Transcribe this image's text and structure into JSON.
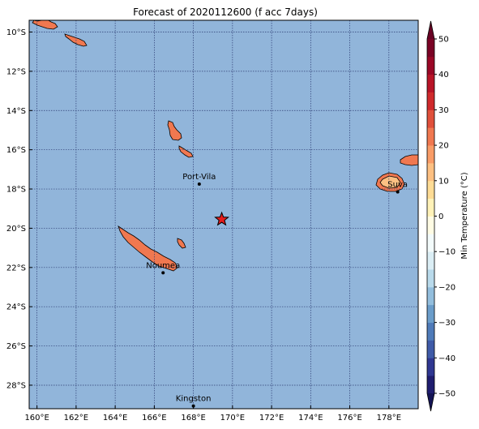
{
  "map": {
    "title": "Forecast of 2020112600 (f acc 7days)",
    "lon_range": [
      159.6,
      179.5
    ],
    "lat_range": [
      -29.2,
      -9.4
    ],
    "ocean_color": "#91b5da",
    "grid_color": "#2d3c73",
    "land_edge_color": "#000000",
    "marker_color": "#e51b1b",
    "lon_ticks": [
      {
        "value": 160,
        "label": "160°E"
      },
      {
        "value": 162,
        "label": "162°E"
      },
      {
        "value": 164,
        "label": "164°E"
      },
      {
        "value": 166,
        "label": "166°E"
      },
      {
        "value": 168,
        "label": "168°E"
      },
      {
        "value": 170,
        "label": "170°E"
      },
      {
        "value": 172,
        "label": "172°E"
      },
      {
        "value": 174,
        "label": "174°E"
      },
      {
        "value": 176,
        "label": "176°E"
      },
      {
        "value": 178,
        "label": "178°E"
      }
    ],
    "lat_ticks": [
      {
        "value": -10,
        "label": "10°S"
      },
      {
        "value": -12,
        "label": "12°S"
      },
      {
        "value": -14,
        "label": "14°S"
      },
      {
        "value": -16,
        "label": "16°S"
      },
      {
        "value": -18,
        "label": "18°S"
      },
      {
        "value": -20,
        "label": "20°S"
      },
      {
        "value": -22,
        "label": "22°S"
      },
      {
        "value": -24,
        "label": "24°S"
      },
      {
        "value": -26,
        "label": "26°S"
      },
      {
        "value": -28,
        "label": "28°S"
      }
    ],
    "cities": [
      {
        "name": "Port-Vila",
        "lon": 168.3,
        "lat": -17.75
      },
      {
        "name": "Suva",
        "lon": 178.45,
        "lat": -18.15
      },
      {
        "name": "Noumea",
        "lon": 166.45,
        "lat": -22.27
      },
      {
        "name": "Kingston",
        "lon": 168.0,
        "lat": -29.06
      }
    ],
    "marker": {
      "lon": 169.45,
      "lat": -19.55
    }
  },
  "colorbar": {
    "label": "Min Temperature (°C)",
    "vmin": -50,
    "vmax": 50,
    "tick_values": [
      -50,
      -40,
      -30,
      -20,
      -10,
      0,
      10,
      20,
      30,
      40,
      50
    ],
    "tick_labels": [
      "−50",
      "−40",
      "−30",
      "−20",
      "−10",
      "0",
      "10",
      "20",
      "30",
      "40",
      "50"
    ],
    "colors": [
      "#1f1d6f",
      "#2f3791",
      "#3f5ba8",
      "#4f7bb9",
      "#6b9dca",
      "#93bedd",
      "#b9daeb",
      "#dbeef5",
      "#f3fbfb",
      "#fffce4",
      "#fff2b8",
      "#fedc95",
      "#fdc082",
      "#f99c67",
      "#f07850",
      "#e0503b",
      "#cf2a2c",
      "#b81427",
      "#9a0726",
      "#7a0325"
    ],
    "under_color": "#141455",
    "over_color": "#680224"
  }
}
